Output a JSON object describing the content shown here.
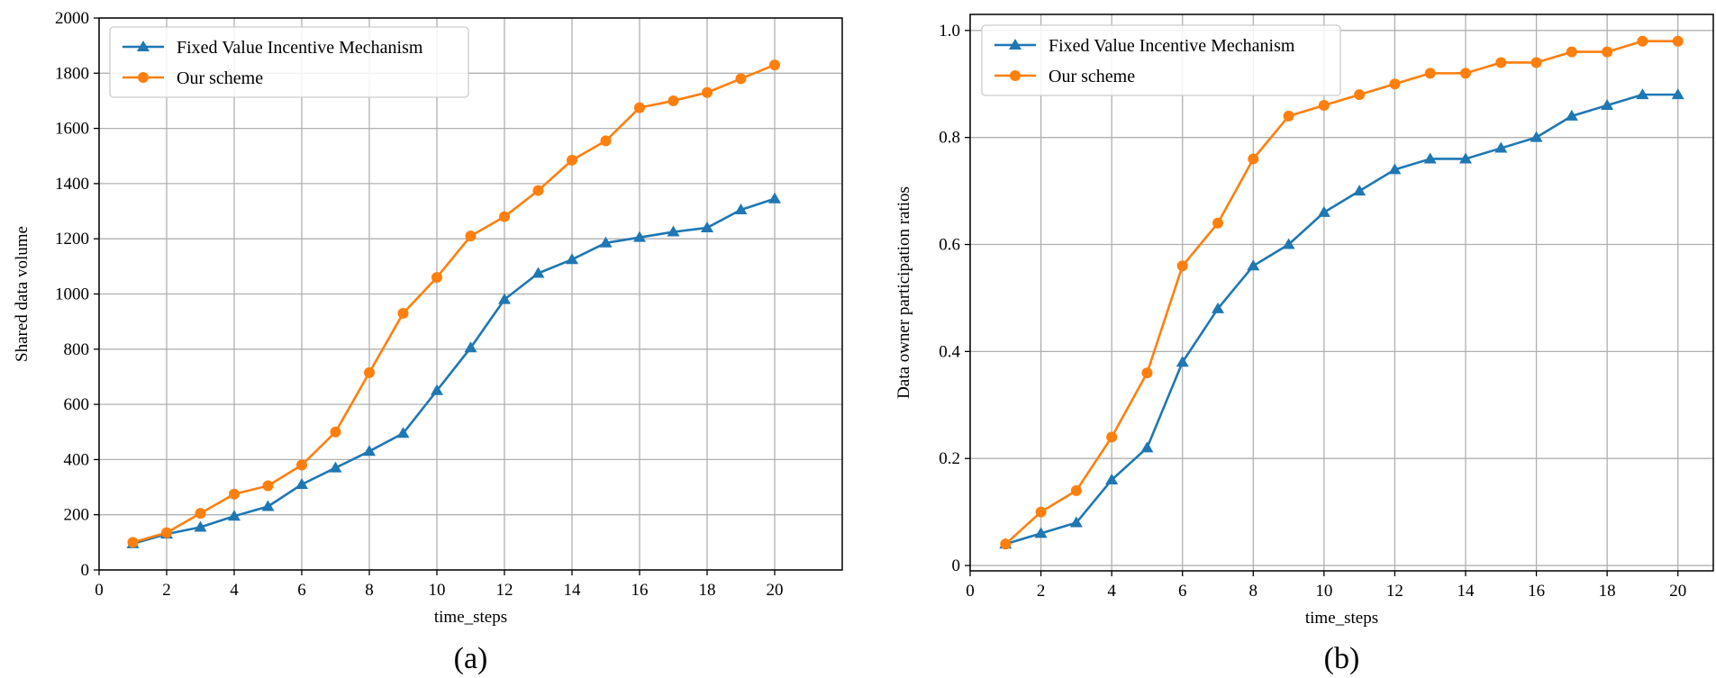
{
  "colors": {
    "fixed": "#1f77b4",
    "ours": "#ff7f0e",
    "grid": "#b0b0b0"
  },
  "chart_data": [
    {
      "type": "line",
      "caption": "(a)",
      "xlabel": "time_steps",
      "ylabel": "Shared data volume",
      "xlim": [
        0,
        22
      ],
      "ylim": [
        0,
        2000
      ],
      "xticks": [
        0,
        2,
        4,
        6,
        8,
        10,
        12,
        14,
        16,
        18,
        20
      ],
      "yticks": [
        0,
        200,
        400,
        600,
        800,
        1000,
        1200,
        1400,
        1600,
        1800,
        2000
      ],
      "ytick_labels": [
        "0",
        "200",
        "400",
        "600",
        "800",
        "1000",
        "1200",
        "1400",
        "1600",
        "1800",
        "2000"
      ],
      "grid": true,
      "legend": "upper-left",
      "x": [
        1,
        2,
        3,
        4,
        5,
        6,
        7,
        8,
        9,
        10,
        11,
        12,
        13,
        14,
        15,
        16,
        17,
        18,
        19,
        20
      ],
      "series": [
        {
          "name": "Fixed Value Incentive Mechanism",
          "marker": "triangle",
          "values": [
            95,
            130,
            155,
            195,
            230,
            310,
            370,
            430,
            495,
            650,
            805,
            980,
            1075,
            1125,
            1185,
            1205,
            1225,
            1240,
            1305,
            1345
          ]
        },
        {
          "name": "Our scheme",
          "marker": "circle",
          "values": [
            100,
            135,
            205,
            275,
            305,
            380,
            500,
            715,
            930,
            1060,
            1210,
            1280,
            1375,
            1485,
            1555,
            1675,
            1700,
            1730,
            1780,
            1830
          ]
        }
      ]
    },
    {
      "type": "line",
      "caption": "(b)",
      "xlabel": "time_steps",
      "ylabel": "Data owner participation ratios",
      "xlim": [
        0,
        21
      ],
      "ylim": [
        -0.01,
        1.03
      ],
      "xticks": [
        0,
        2,
        4,
        6,
        8,
        10,
        12,
        14,
        16,
        18,
        20
      ],
      "yticks": [
        0,
        0.2,
        0.4,
        0.6,
        0.8,
        1.0
      ],
      "ytick_labels": [
        "0",
        "0.2",
        "0.4",
        "0.6",
        "0.8",
        "1.0"
      ],
      "grid": true,
      "legend": "upper-left",
      "x": [
        1,
        2,
        3,
        4,
        5,
        6,
        7,
        8,
        9,
        10,
        11,
        12,
        13,
        14,
        15,
        16,
        17,
        18,
        19,
        20
      ],
      "series": [
        {
          "name": "Fixed Value Incentive Mechanism",
          "marker": "triangle",
          "values": [
            0.04,
            0.06,
            0.08,
            0.16,
            0.22,
            0.38,
            0.48,
            0.56,
            0.6,
            0.66,
            0.7,
            0.74,
            0.76,
            0.76,
            0.78,
            0.8,
            0.84,
            0.86,
            0.88,
            0.88
          ]
        },
        {
          "name": "Our scheme",
          "marker": "circle",
          "values": [
            0.04,
            0.1,
            0.14,
            0.24,
            0.36,
            0.56,
            0.64,
            0.76,
            0.84,
            0.86,
            0.88,
            0.9,
            0.92,
            0.92,
            0.94,
            0.94,
            0.96,
            0.96,
            0.98,
            0.98
          ]
        }
      ]
    }
  ]
}
